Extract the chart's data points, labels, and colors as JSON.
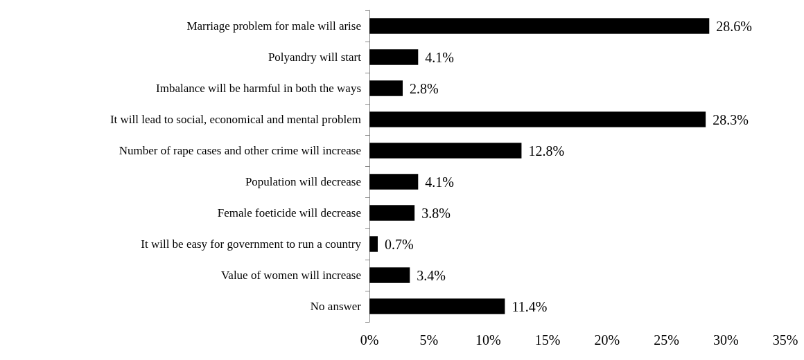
{
  "chart_data": {
    "type": "bar",
    "orientation": "horizontal",
    "categories": [
      "Marriage problem for male will arise",
      "Polyandry will start",
      "Imbalance will be harmful in both the ways",
      "It will lead to social, economical and mental problem",
      "Number of rape cases and other crime will increase",
      "Population will decrease",
      "Female foeticide will decrease",
      "It will be easy for government to run a country",
      "Value of women will increase",
      "No answer"
    ],
    "values": [
      28.6,
      4.1,
      2.8,
      28.3,
      12.8,
      4.1,
      3.8,
      0.7,
      3.4,
      11.4
    ],
    "value_labels": [
      "28.6%",
      "4.1%",
      "2.8%",
      "28.3%",
      "12.8%",
      "4.1%",
      "3.8%",
      "0.7%",
      "3.4%",
      "11.4%"
    ],
    "color": "#000000",
    "xlim": [
      0,
      35
    ],
    "xticks": [
      {
        "value": 0,
        "label": "0%"
      },
      {
        "value": 5,
        "label": "5%"
      },
      {
        "value": 10,
        "label": "10%"
      },
      {
        "value": 15,
        "label": "15%"
      },
      {
        "value": 20,
        "label": "20%"
      },
      {
        "value": 25,
        "label": "25%"
      },
      {
        "value": 30,
        "label": "30%"
      },
      {
        "value": 35,
        "label": "35%"
      }
    ],
    "grid": false
  }
}
